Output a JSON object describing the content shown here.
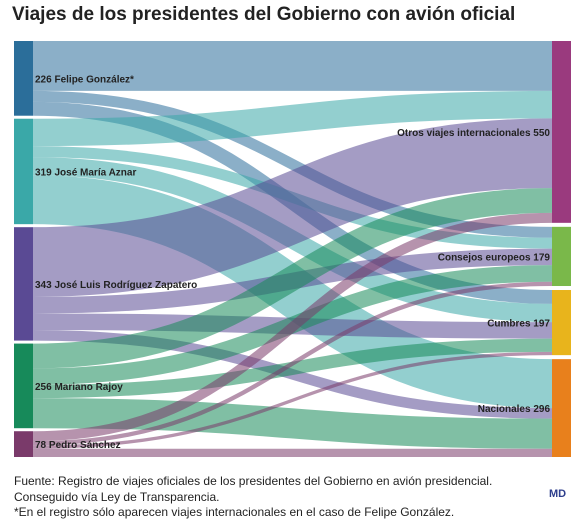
{
  "title": "Viajes de los presidentes del Gobierno con avión oficial",
  "footer": {
    "source": "Fuente: Registro de viajes oficiales de los presidentes del Gobierno en avión presidencial. Conseguido vía Ley de Transparencia.",
    "note": "*En el registro sólo aparecen viajes internacionales en el caso de Felipe González."
  },
  "logo": "MD",
  "chart_data": {
    "type": "sankey",
    "sources": [
      {
        "name": "Felipe González*",
        "value": 226,
        "label": "226 Felipe González*",
        "color": "#2b6e9a"
      },
      {
        "name": "José María Aznar",
        "value": 319,
        "label": "319 José María Aznar",
        "color": "#3aa8a8"
      },
      {
        "name": "José Luis Rodríguez Zapatero",
        "value": 343,
        "label": "343 José Luis Rodríguez Zapatero",
        "color": "#5a4a94"
      },
      {
        "name": "Mariano Rajoy",
        "value": 256,
        "label": "256 Mariano Rajoy",
        "color": "#178a5a"
      },
      {
        "name": "Pedro Sánchez",
        "value": 78,
        "label": "78 Pedro Sánchez",
        "color": "#7a3a6a"
      }
    ],
    "targets": [
      {
        "name": "Otros viajes internacionales",
        "value": 550,
        "label": "Otros viajes internacionales 550",
        "color": "#9a3a7e"
      },
      {
        "name": "Consejos europeos",
        "value": 179,
        "label": "Consejos europeos 179",
        "color": "#7ab84a"
      },
      {
        "name": "Cumbres",
        "value": 197,
        "label": "Cumbres 197",
        "color": "#e8b41c"
      },
      {
        "name": "Nacionales",
        "value": 296,
        "label": "Nacionales 296",
        "color": "#e8801c"
      }
    ],
    "links": [
      {
        "source": "Felipe González*",
        "target": "Otros viajes internacionales",
        "value": 151
      },
      {
        "source": "Felipe González*",
        "target": "Consejos europeos",
        "value": 33
      },
      {
        "source": "Felipe González*",
        "target": "Cumbres",
        "value": 42
      },
      {
        "source": "José María Aznar",
        "target": "Otros viajes internacionales",
        "value": 83
      },
      {
        "source": "José María Aznar",
        "target": "Consejos europeos",
        "value": 33
      },
      {
        "source": "José María Aznar",
        "target": "Cumbres",
        "value": 55
      },
      {
        "source": "José María Aznar",
        "target": "Nacionales",
        "value": 148
      },
      {
        "source": "José Luis Rodríguez Zapatero",
        "target": "Otros viajes internacionales",
        "value": 211
      },
      {
        "source": "José Luis Rodríguez Zapatero",
        "target": "Consejos europeos",
        "value": 50
      },
      {
        "source": "José Luis Rodríguez Zapatero",
        "target": "Cumbres",
        "value": 50
      },
      {
        "source": "José Luis Rodríguez Zapatero",
        "target": "Nacionales",
        "value": 32
      },
      {
        "source": "Mariano Rajoy",
        "target": "Otros viajes internacionales",
        "value": 75
      },
      {
        "source": "Mariano Rajoy",
        "target": "Consejos europeos",
        "value": 50
      },
      {
        "source": "Mariano Rajoy",
        "target": "Cumbres",
        "value": 40
      },
      {
        "source": "Mariano Rajoy",
        "target": "Nacionales",
        "value": 91
      },
      {
        "source": "Pedro Sánchez",
        "target": "Otros viajes internacionales",
        "value": 30
      },
      {
        "source": "Pedro Sánchez",
        "target": "Consejos europeos",
        "value": 13
      },
      {
        "source": "Pedro Sánchez",
        "target": "Cumbres",
        "value": 10
      },
      {
        "source": "Pedro Sánchez",
        "target": "Nacionales",
        "value": 25
      }
    ]
  }
}
